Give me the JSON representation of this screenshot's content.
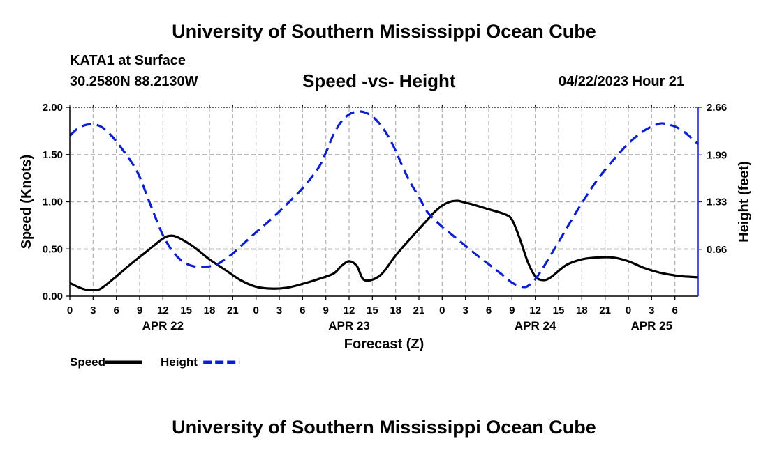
{
  "header": {
    "title": "University of Southern Mississippi Ocean Cube",
    "station": "KATA1 at Surface",
    "coordinates": "30.2580N  88.2130W",
    "subtitle": "Speed -vs- Height",
    "datetime": "04/22/2023 Hour 21"
  },
  "footer": {
    "title": "University of Southern Mississippi Ocean Cube"
  },
  "chart_data": {
    "type": "line",
    "title": "Speed -vs- Height",
    "xlabel": "Forecast (Z)",
    "ylabel": "Speed (Knots)",
    "y2label": "Height (feet)",
    "xlim": [
      0,
      81
    ],
    "ylim": [
      0,
      2
    ],
    "y2lim": [
      0,
      2.66
    ],
    "grid": true,
    "x_ticks": [
      0,
      3,
      6,
      9,
      12,
      15,
      18,
      21,
      24,
      27,
      30,
      33,
      36,
      39,
      42,
      45,
      48,
      51,
      54,
      57,
      60,
      63,
      66,
      69,
      72,
      75,
      78
    ],
    "x_tick_labels": [
      "0",
      "3",
      "6",
      "9",
      "12",
      "15",
      "18",
      "21",
      "0",
      "3",
      "6",
      "9",
      "12",
      "15",
      "18",
      "21",
      "0",
      "3",
      "6",
      "9",
      "12",
      "15",
      "18",
      "21",
      "0",
      "3",
      "6"
    ],
    "y_ticks": [
      0,
      0.5,
      1.0,
      1.5,
      2.0
    ],
    "y_tick_labels": [
      "0.00",
      "0.50",
      "1.00",
      "1.50",
      "2.00"
    ],
    "y2_ticks": [
      0.66,
      1.33,
      1.99,
      2.66
    ],
    "y2_tick_labels": [
      "0.66",
      "1.33",
      "1.99",
      "2.66"
    ],
    "date_labels": [
      {
        "x": 12,
        "label": "APR 22"
      },
      {
        "x": 36,
        "label": "APR 23"
      },
      {
        "x": 60,
        "label": "APR 24"
      },
      {
        "x": 75,
        "label": "APR 25"
      }
    ],
    "series": [
      {
        "name": "Speed",
        "axis": "left",
        "color": "#000000",
        "style": "solid",
        "x": [
          0,
          1,
          2,
          3,
          4,
          6,
          8,
          10,
          12,
          13,
          14,
          16,
          18,
          20,
          22,
          24,
          26,
          28,
          30,
          32,
          34,
          35,
          36,
          37,
          38,
          40,
          42,
          44,
          46,
          47,
          48,
          49,
          50,
          51,
          52,
          54,
          56,
          57,
          58,
          59,
          60,
          61,
          62,
          64,
          66,
          68,
          70,
          72,
          74,
          76,
          78,
          79,
          80,
          81
        ],
        "values": [
          0.14,
          0.1,
          0.07,
          0.065,
          0.08,
          0.21,
          0.35,
          0.48,
          0.61,
          0.64,
          0.62,
          0.52,
          0.39,
          0.28,
          0.17,
          0.1,
          0.08,
          0.09,
          0.13,
          0.18,
          0.24,
          0.32,
          0.37,
          0.32,
          0.17,
          0.22,
          0.43,
          0.62,
          0.8,
          0.89,
          0.96,
          1.0,
          1.01,
          0.99,
          0.97,
          0.92,
          0.87,
          0.81,
          0.61,
          0.37,
          0.21,
          0.17,
          0.2,
          0.33,
          0.39,
          0.41,
          0.41,
          0.37,
          0.3,
          0.25,
          0.22,
          0.21,
          0.205,
          0.2
        ],
        "tension": 0.5
      },
      {
        "name": "Height",
        "axis": "right",
        "color": "#0b1fd1",
        "style": "dashed",
        "x": [
          0,
          1,
          2,
          3,
          4,
          5,
          6,
          8,
          9,
          10,
          11,
          12,
          13,
          14,
          15,
          16,
          17,
          18,
          19,
          20,
          21,
          22,
          24,
          26,
          28,
          30,
          32,
          33,
          34,
          35,
          36,
          37,
          38,
          39,
          40,
          41,
          42,
          43,
          44,
          45,
          46,
          47,
          48,
          50,
          52,
          54,
          56,
          57,
          58,
          58.5,
          59,
          60,
          61,
          62,
          63,
          64,
          66,
          68,
          70,
          72,
          74,
          76,
          77,
          78,
          79,
          80,
          81
        ],
        "values": [
          2.26,
          2.36,
          2.41,
          2.42,
          2.39,
          2.3,
          2.18,
          1.88,
          1.68,
          1.4,
          1.12,
          0.86,
          0.67,
          0.54,
          0.46,
          0.42,
          0.41,
          0.42,
          0.45,
          0.52,
          0.6,
          0.7,
          0.9,
          1.09,
          1.3,
          1.52,
          1.8,
          2.02,
          2.28,
          2.46,
          2.56,
          2.6,
          2.59,
          2.53,
          2.42,
          2.26,
          2.05,
          1.8,
          1.58,
          1.4,
          1.2,
          1.08,
          0.98,
          0.8,
          0.62,
          0.45,
          0.28,
          0.19,
          0.14,
          0.13,
          0.14,
          0.24,
          0.4,
          0.58,
          0.76,
          0.95,
          1.31,
          1.64,
          1.91,
          2.15,
          2.33,
          2.43,
          2.42,
          2.39,
          2.33,
          2.24,
          2.14
        ],
        "tension": 0.5
      }
    ],
    "legend": [
      {
        "label": "Speed",
        "color": "#000000",
        "style": "solid"
      },
      {
        "label": "Height",
        "color": "#0b1fd1",
        "style": "dashed"
      }
    ],
    "legend_position": "bottom-left"
  }
}
